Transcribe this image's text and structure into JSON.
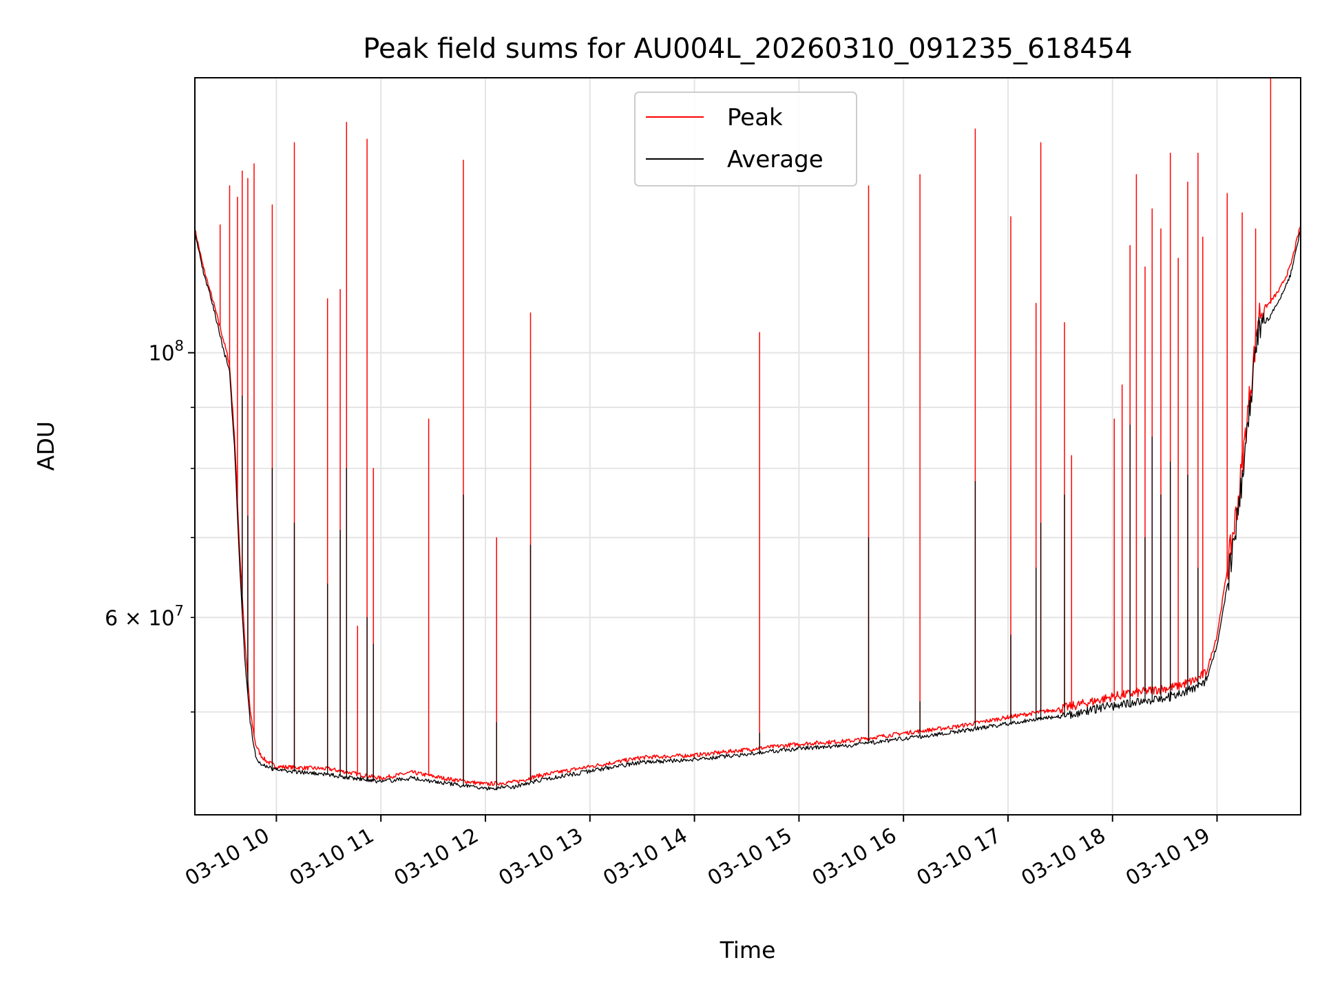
{
  "chart_data": {
    "type": "line",
    "title": "Peak field sums for AU004L_20260310_091235_618454",
    "xlabel": "Time",
    "ylabel": "ADU",
    "yscale": "log",
    "grid": true,
    "legend_position": "upper-center",
    "xlim_hours": [
      9.22,
      19.8
    ],
    "ylim": [
      41000000,
      170000000
    ],
    "x_ticks": [
      {
        "value": 10,
        "label": "03-10 10"
      },
      {
        "value": 11,
        "label": "03-10 11"
      },
      {
        "value": 12,
        "label": "03-10 12"
      },
      {
        "value": 13,
        "label": "03-10 13"
      },
      {
        "value": 14,
        "label": "03-10 14"
      },
      {
        "value": 15,
        "label": "03-10 15"
      },
      {
        "value": 16,
        "label": "03-10 16"
      },
      {
        "value": 17,
        "label": "03-10 17"
      },
      {
        "value": 18,
        "label": "03-10 18"
      },
      {
        "value": 19,
        "label": "03-10 19"
      }
    ],
    "y_major_ticks": [
      {
        "value": 100000000,
        "base": "10",
        "exp": "8"
      }
    ],
    "y_minor_labeled": [
      {
        "value": 60000000,
        "mantissa": "6",
        "base": "10",
        "exp": "7"
      }
    ],
    "y_minor_unlabeled": [
      50000000,
      70000000,
      80000000,
      90000000
    ],
    "series": [
      {
        "name": "Peak",
        "color": "#ff0000",
        "baseline": {
          "x": [
            9.22,
            9.3,
            9.4,
            9.5,
            9.55,
            9.6,
            9.65,
            9.7,
            9.75,
            9.8,
            9.85,
            9.9,
            10.0,
            10.5,
            11.0,
            11.3,
            11.6,
            12.0,
            12.3,
            12.5,
            13.0,
            13.5,
            14.0,
            14.5,
            15.0,
            15.5,
            16.0,
            16.5,
            17.0,
            17.5,
            17.8,
            18.0,
            18.3,
            18.6,
            18.8,
            18.9,
            19.0,
            19.1,
            19.2,
            19.3,
            19.4,
            19.5,
            19.6,
            19.7,
            19.8
          ],
          "y": [
            127000000,
            118000000,
            110000000,
            102000000,
            98000000,
            85000000,
            68000000,
            57000000,
            50000000,
            47000000,
            46000000,
            45500000,
            45000000,
            44800000,
            44000000,
            44500000,
            44000000,
            43500000,
            43700000,
            44200000,
            45000000,
            45800000,
            46000000,
            46500000,
            47000000,
            47300000,
            48000000,
            48600000,
            49500000,
            50300000,
            51000000,
            51500000,
            52000000,
            52500000,
            53200000,
            54000000,
            58000000,
            66000000,
            75000000,
            90000000,
            108000000,
            110000000,
            113000000,
            118000000,
            128000000
          ]
        },
        "spikes": [
          {
            "x": 9.46,
            "y": 128000000
          },
          {
            "x": 9.55,
            "y": 138000000
          },
          {
            "x": 9.63,
            "y": 135000000
          },
          {
            "x": 9.67,
            "y": 142000000
          },
          {
            "x": 9.73,
            "y": 140000000
          },
          {
            "x": 9.79,
            "y": 144000000
          },
          {
            "x": 9.96,
            "y": 133000000
          },
          {
            "x": 10.17,
            "y": 150000000
          },
          {
            "x": 10.49,
            "y": 111000000
          },
          {
            "x": 10.61,
            "y": 113000000
          },
          {
            "x": 10.67,
            "y": 156000000
          },
          {
            "x": 10.78,
            "y": 59000000
          },
          {
            "x": 10.87,
            "y": 151000000
          },
          {
            "x": 10.93,
            "y": 80000000
          },
          {
            "x": 11.46,
            "y": 88000000
          },
          {
            "x": 11.79,
            "y": 145000000
          },
          {
            "x": 12.11,
            "y": 70000000
          },
          {
            "x": 12.43,
            "y": 108000000
          },
          {
            "x": 14.62,
            "y": 104000000
          },
          {
            "x": 15.67,
            "y": 138000000
          },
          {
            "x": 16.16,
            "y": 141000000
          },
          {
            "x": 16.69,
            "y": 154000000
          },
          {
            "x": 17.03,
            "y": 130000000
          },
          {
            "x": 17.27,
            "y": 110000000
          },
          {
            "x": 17.31,
            "y": 150000000
          },
          {
            "x": 17.54,
            "y": 106000000
          },
          {
            "x": 17.61,
            "y": 82000000
          },
          {
            "x": 18.02,
            "y": 88000000
          },
          {
            "x": 18.09,
            "y": 94000000
          },
          {
            "x": 18.17,
            "y": 123000000
          },
          {
            "x": 18.23,
            "y": 141000000
          },
          {
            "x": 18.31,
            "y": 118000000
          },
          {
            "x": 18.38,
            "y": 132000000
          },
          {
            "x": 18.46,
            "y": 127000000
          },
          {
            "x": 18.55,
            "y": 147000000
          },
          {
            "x": 18.63,
            "y": 120000000
          },
          {
            "x": 18.72,
            "y": 139000000
          },
          {
            "x": 18.82,
            "y": 147000000
          },
          {
            "x": 18.86,
            "y": 125000000
          },
          {
            "x": 19.1,
            "y": 136000000
          },
          {
            "x": 19.24,
            "y": 131000000
          },
          {
            "x": 19.37,
            "y": 127000000
          },
          {
            "x": 19.51,
            "y": 170000000
          }
        ]
      },
      {
        "name": "Average",
        "color": "#000000",
        "baseline": {
          "x": [
            9.22,
            9.3,
            9.4,
            9.5,
            9.55,
            9.6,
            9.65,
            9.7,
            9.75,
            9.8,
            9.85,
            9.9,
            10.0,
            10.5,
            11.0,
            11.3,
            11.6,
            12.0,
            12.3,
            12.5,
            13.0,
            13.5,
            14.0,
            14.5,
            15.0,
            15.5,
            16.0,
            16.5,
            17.0,
            17.5,
            17.8,
            18.0,
            18.3,
            18.6,
            18.8,
            18.9,
            19.0,
            19.1,
            19.2,
            19.3,
            19.4,
            19.5,
            19.6,
            19.7,
            19.8
          ],
          "y": [
            126000000,
            117000000,
            109000000,
            100000000,
            97000000,
            83000000,
            66000000,
            55000000,
            49000000,
            46000000,
            45200000,
            45000000,
            44700000,
            44300000,
            43700000,
            44000000,
            43600000,
            43100000,
            43300000,
            43800000,
            44600000,
            45400000,
            45600000,
            46100000,
            46600000,
            46900000,
            47500000,
            48100000,
            48900000,
            49600000,
            50200000,
            50600000,
            51100000,
            51600000,
            52400000,
            53200000,
            57000000,
            64000000,
            73000000,
            88000000,
            105000000,
            107000000,
            111000000,
            116000000,
            127000000
          ]
        },
        "spikes": [
          {
            "x": 9.67,
            "y": 92000000
          },
          {
            "x": 9.73,
            "y": 73000000
          },
          {
            "x": 9.96,
            "y": 80000000
          },
          {
            "x": 10.17,
            "y": 72000000
          },
          {
            "x": 10.49,
            "y": 64000000
          },
          {
            "x": 10.61,
            "y": 71000000
          },
          {
            "x": 10.67,
            "y": 80000000
          },
          {
            "x": 10.87,
            "y": 60000000
          },
          {
            "x": 10.93,
            "y": 57000000
          },
          {
            "x": 11.79,
            "y": 76000000
          },
          {
            "x": 12.11,
            "y": 49000000
          },
          {
            "x": 12.43,
            "y": 69000000
          },
          {
            "x": 14.62,
            "y": 48000000
          },
          {
            "x": 15.67,
            "y": 70000000
          },
          {
            "x": 16.16,
            "y": 51000000
          },
          {
            "x": 16.69,
            "y": 78000000
          },
          {
            "x": 17.03,
            "y": 58000000
          },
          {
            "x": 17.27,
            "y": 66000000
          },
          {
            "x": 17.31,
            "y": 72000000
          },
          {
            "x": 17.54,
            "y": 76000000
          },
          {
            "x": 18.17,
            "y": 87000000
          },
          {
            "x": 18.31,
            "y": 70000000
          },
          {
            "x": 18.38,
            "y": 85000000
          },
          {
            "x": 18.46,
            "y": 76000000
          },
          {
            "x": 18.55,
            "y": 81000000
          },
          {
            "x": 18.72,
            "y": 79000000
          },
          {
            "x": 18.82,
            "y": 66000000
          },
          {
            "x": 19.37,
            "y": 100000000
          }
        ]
      }
    ]
  }
}
